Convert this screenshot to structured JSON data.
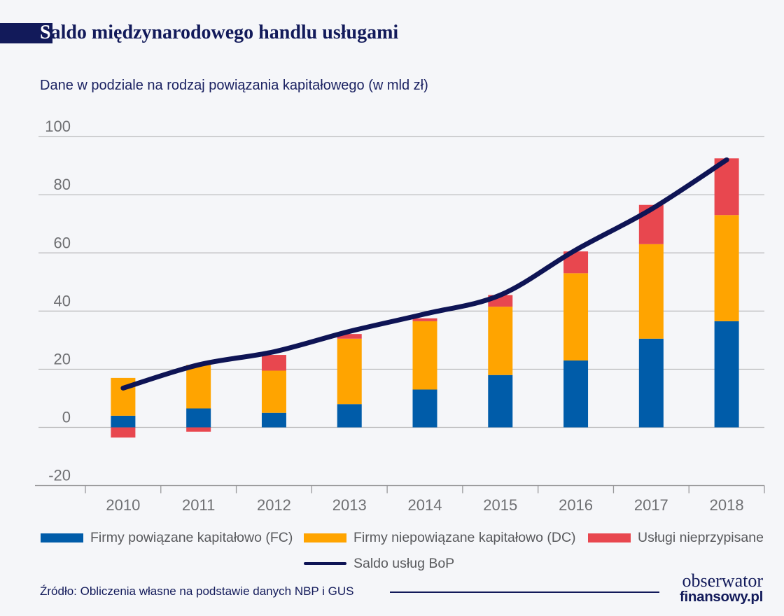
{
  "page": {
    "background": "#F5F6F9",
    "accent_navy": "#121A5A"
  },
  "header": {
    "title_first_letter": "S",
    "title_rest": "aldo międzynarodowego handlu usługami",
    "title_full": "Saldo międzynarodowego handlu usługami",
    "subtitle": "Dane w podziale na rodzaj powiązania kapitałowego (w mld zł)"
  },
  "chart_data": {
    "type": "bar",
    "stacked": true,
    "title": "Saldo międzynarodowego handlu usługami",
    "subtitle": "Dane w podziale na rodzaj powiązania kapitałowego (w mld zł)",
    "unit": "mld zł",
    "categories": [
      "2010",
      "2011",
      "2012",
      "2013",
      "2014",
      "2015",
      "2016",
      "2017",
      "2018"
    ],
    "series": [
      {
        "name": "Firmy powiązane kapitałowo (FC)",
        "color": "#005CA9",
        "values": [
          4,
          6.5,
          5,
          8,
          13,
          18,
          23,
          30.5,
          36.5
        ]
      },
      {
        "name": "Firmy niepowiązane kapitałowo (DC)",
        "color": "#FFA400",
        "values": [
          13,
          15,
          14.5,
          22.5,
          23.5,
          23.5,
          30,
          32.5,
          36.5
        ]
      },
      {
        "name": "Usługi nieprzypisane",
        "color": "#E8474F",
        "values": [
          -3.5,
          -1.5,
          5.4,
          1.6,
          1,
          4,
          7.5,
          13.5,
          19.5
        ]
      }
    ],
    "line_series": {
      "name": "Saldo usług BoP",
      "color": "#0E1455",
      "values": [
        13.5,
        21.5,
        26,
        33,
        39,
        45.5,
        61,
        75,
        92
      ]
    },
    "xlabel": "",
    "ylabel": "",
    "ylim": [
      -20,
      100
    ],
    "yticks": [
      100,
      80,
      60,
      40,
      20,
      0,
      -20
    ],
    "grid": true,
    "legend_position": "bottom",
    "axis_text_color": "#6E6F72",
    "gridline_color": "#B7B7B9",
    "axis_line_color": "#98989A"
  },
  "legend": {
    "items": [
      {
        "label": "Firmy powiązane kapitałowo (FC)",
        "color": "#005CA9",
        "type": "box"
      },
      {
        "label": "Firmy niepowiązane kapitałowo (DC)",
        "color": "#FFA400",
        "type": "box"
      },
      {
        "label": "Usługi nieprzypisane",
        "color": "#E8474F",
        "type": "box"
      },
      {
        "label": "Saldo usług BoP",
        "color": "#0E1455",
        "type": "line"
      }
    ]
  },
  "footer": {
    "source": "Źródło: Obliczenia własne na podstawie danych NBP i GUS",
    "logo": {
      "line1": "obserwator",
      "line2": "finansowy.pl"
    }
  }
}
